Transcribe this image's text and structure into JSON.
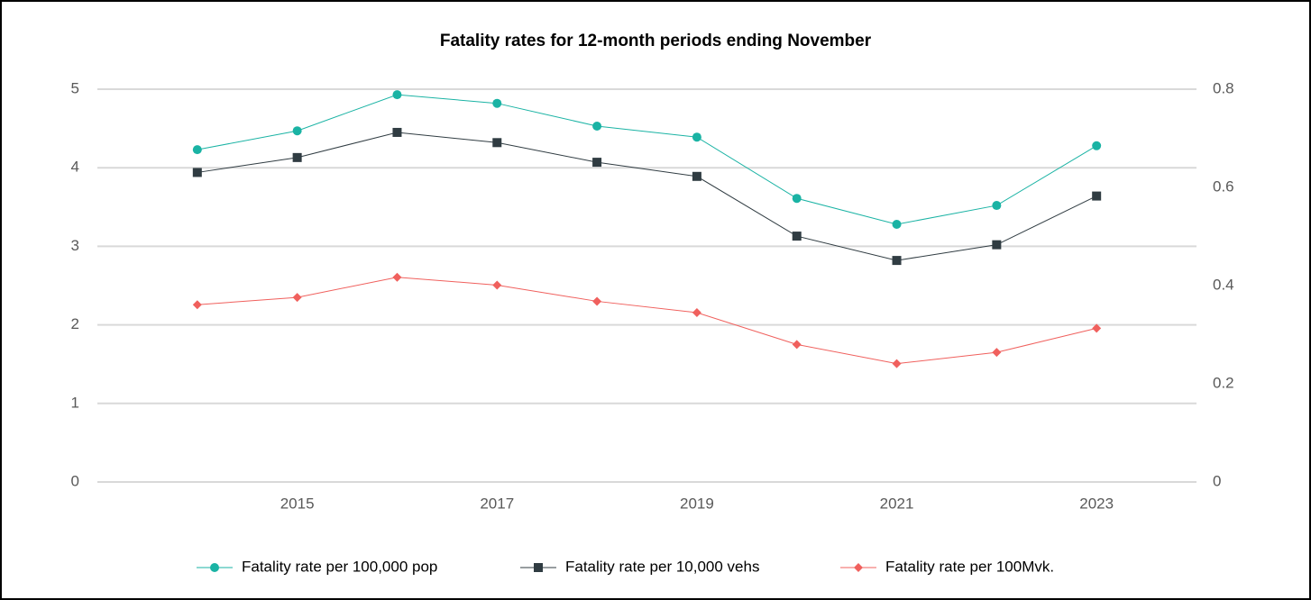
{
  "chart_data": {
    "type": "line",
    "title": "Fatality rates for 12-month periods ending November",
    "x": [
      2014,
      2015,
      2016,
      2017,
      2018,
      2019,
      2020,
      2021,
      2022,
      2023
    ],
    "xlim": [
      2013,
      2024
    ],
    "xticks": [
      2015,
      2017,
      2019,
      2021,
      2023
    ],
    "ylim": [
      0,
      5
    ],
    "yticks": [
      0,
      1,
      2,
      3,
      4,
      5
    ],
    "y2lim": [
      0,
      0.8
    ],
    "y2ticks": [
      0,
      0.2,
      0.4,
      0.6,
      0.8
    ],
    "grid": true,
    "legend": "bottom",
    "series": [
      {
        "name": "Fatality rate per 100,000 pop",
        "color": "#1ab3a4",
        "marker": "circle",
        "values": [
          4.23,
          4.47,
          4.93,
          4.82,
          4.53,
          4.39,
          3.61,
          3.28,
          3.52,
          4.28
        ]
      },
      {
        "name": "Fatality rate per 10,000 vehs",
        "color": "#303c42",
        "marker": "square",
        "values": [
          3.94,
          4.13,
          4.45,
          4.32,
          4.07,
          3.89,
          3.13,
          2.82,
          3.02,
          3.64
        ]
      },
      {
        "name": "Fatality rate per 100Mvk.",
        "color": "#f0605d",
        "marker": "diamond",
        "axis": "y2",
        "values": [
          0.361,
          0.376,
          0.417,
          0.401,
          0.368,
          0.345,
          0.28,
          0.241,
          0.264,
          0.313
        ]
      }
    ]
  }
}
